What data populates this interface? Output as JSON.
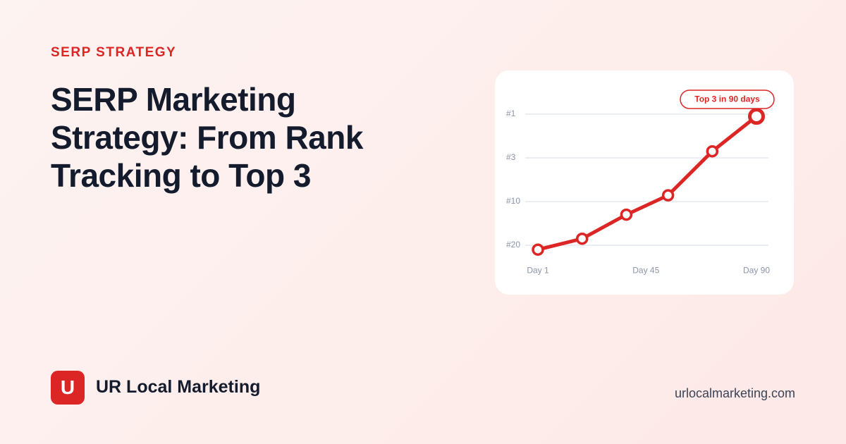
{
  "eyebrow": "SERP STRATEGY",
  "title": "SERP Marketing Strategy: From Rank Tracking to Top 3",
  "brand": {
    "logo": "U",
    "name": "UR Local Marketing"
  },
  "url": "urlocalmarketing.com",
  "chart_data": {
    "type": "line",
    "x": [
      1,
      19,
      37,
      54,
      72,
      90
    ],
    "xlim": [
      1,
      90
    ],
    "xticks": [
      {
        "value": 1,
        "label": "Day 1"
      },
      {
        "value": 45,
        "label": "Day 45"
      },
      {
        "value": 90,
        "label": "Day 90"
      }
    ],
    "series": [
      {
        "color": "#dc2626",
        "values": [
          21,
          18.5,
          13,
          9,
          2.7,
          1.1
        ]
      }
    ],
    "ylim": [
      1,
      21
    ],
    "yinverted": true,
    "yticks": [
      {
        "value": 1,
        "label": "#1"
      },
      {
        "value": 3,
        "label": "#3"
      },
      {
        "value": 10,
        "label": "#10"
      },
      {
        "value": 20,
        "label": "#20"
      }
    ],
    "grid": true,
    "annotation": "Top 3 in 90 days"
  }
}
